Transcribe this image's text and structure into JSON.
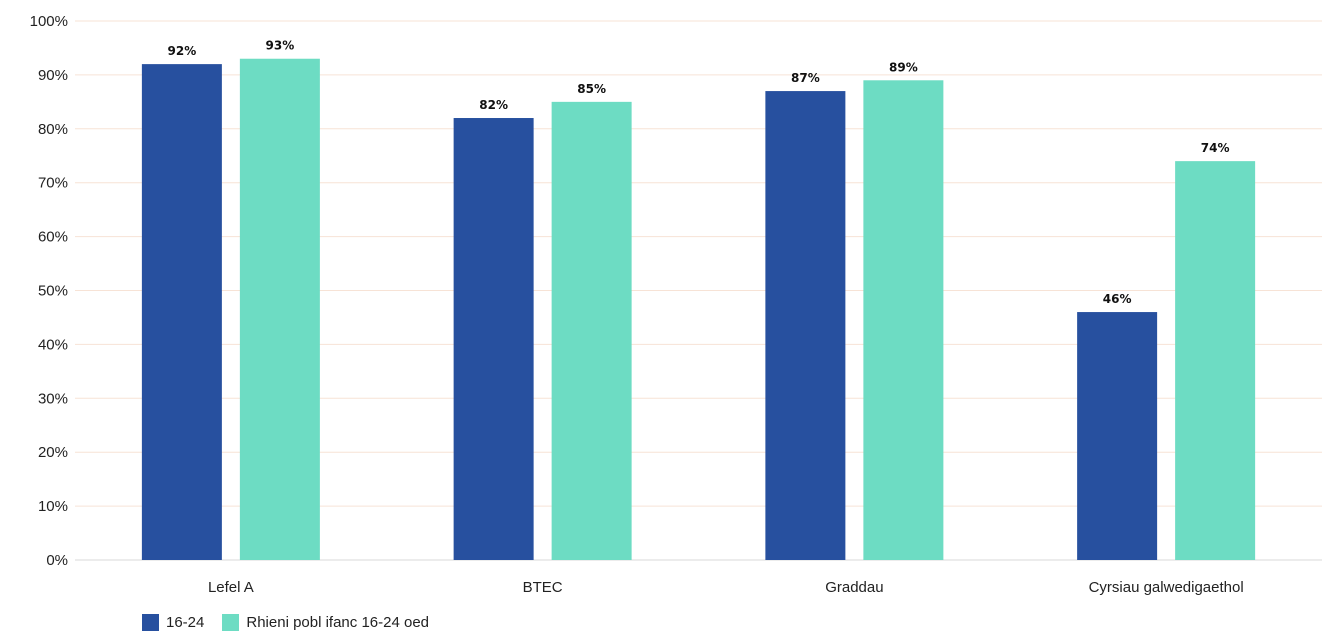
{
  "chart_data": {
    "type": "bar",
    "categories": [
      "Lefel A",
      "BTEC",
      "Graddau",
      "Cyrsiau galwedigaethol"
    ],
    "series": [
      {
        "name": "16-24",
        "values": [
          92,
          82,
          87,
          46
        ],
        "labels": [
          "92%",
          "82%",
          "87%",
          "46%"
        ],
        "color": "#27509f"
      },
      {
        "name": "Rhieni pobl ifanc 16-24 oed",
        "values": [
          93,
          85,
          89,
          74
        ],
        "labels": [
          "93%",
          "85%",
          "89%",
          "74%"
        ],
        "color": "#6ddcc3"
      }
    ],
    "yticks": [
      "0%",
      "10%",
      "20%",
      "30%",
      "40%",
      "50%",
      "60%",
      "70%",
      "80%",
      "90%",
      "100%"
    ],
    "ylim": [
      0,
      100
    ],
    "grid": true,
    "gridColor": "#f7e3d6",
    "legend_position": "bottom-left"
  }
}
